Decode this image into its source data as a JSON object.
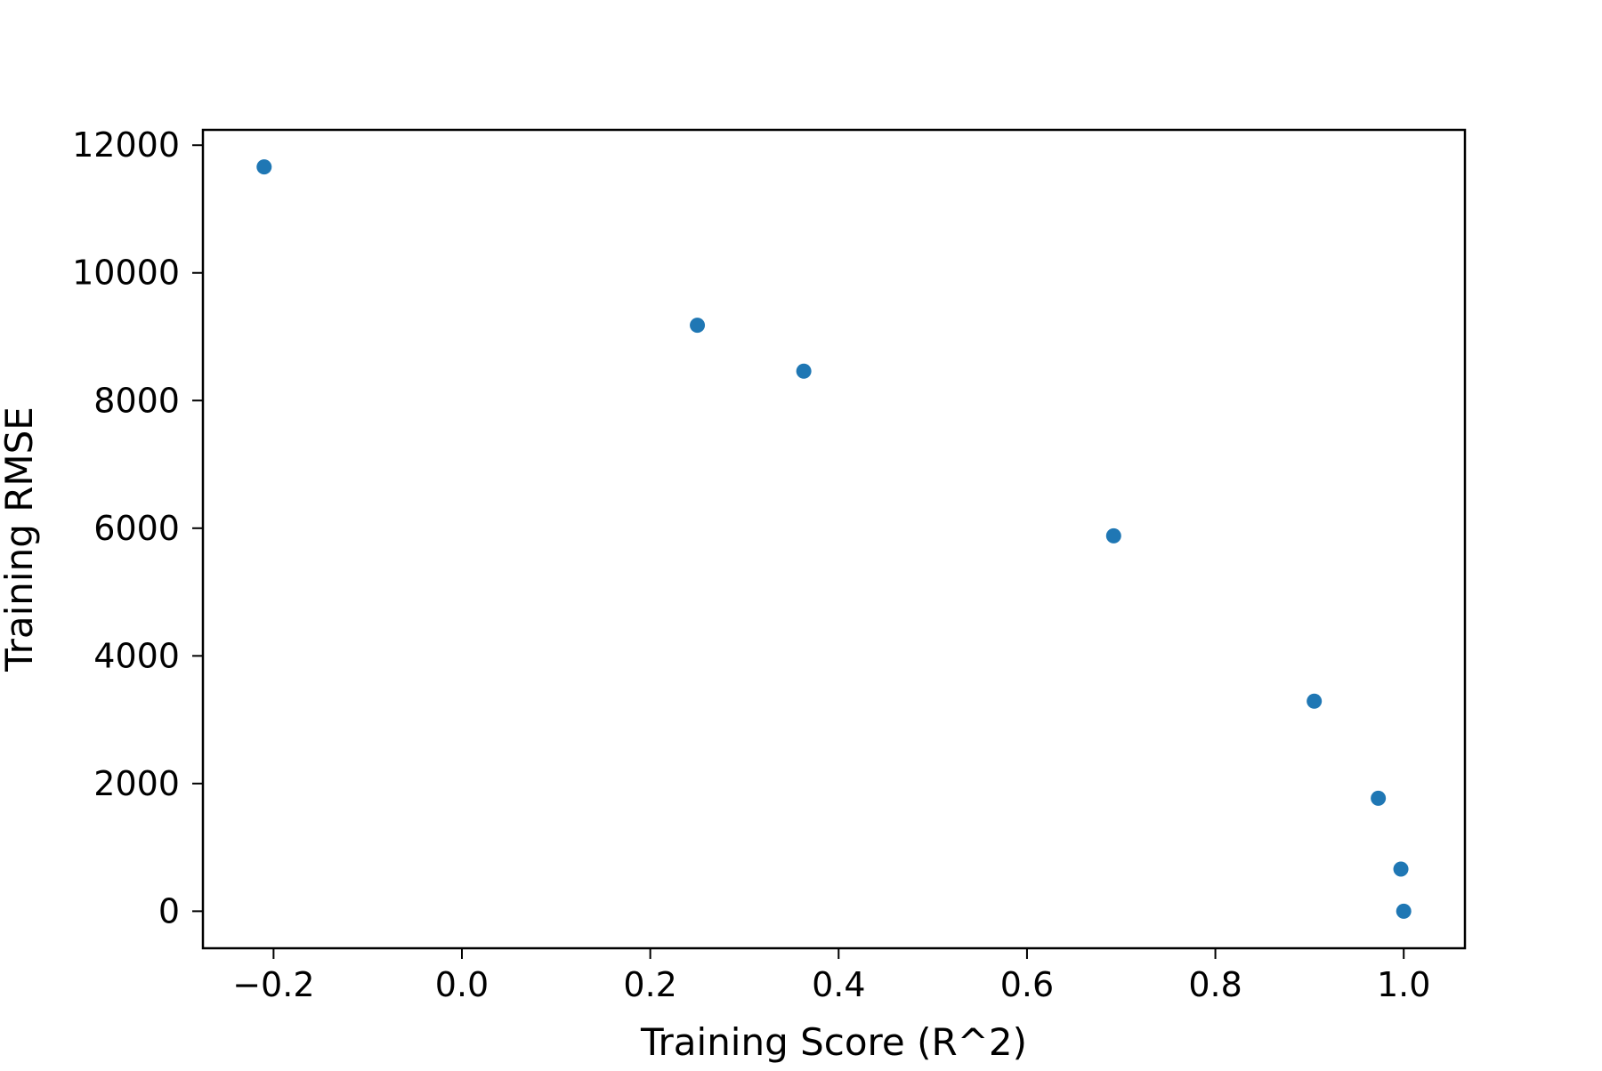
{
  "chart_data": {
    "type": "scatter",
    "title": "",
    "xlabel": "Training Score (R^2)",
    "ylabel": "Training RMSE",
    "xlim": [
      -0.275,
      1.065
    ],
    "ylim": [
      -580,
      12240
    ],
    "xticks": [
      {
        "value": -0.2,
        "label": "−0.2"
      },
      {
        "value": 0.0,
        "label": "0.0"
      },
      {
        "value": 0.2,
        "label": "0.2"
      },
      {
        "value": 0.4,
        "label": "0.4"
      },
      {
        "value": 0.6,
        "label": "0.6"
      },
      {
        "value": 0.8,
        "label": "0.8"
      },
      {
        "value": 1.0,
        "label": "1.0"
      }
    ],
    "yticks": [
      {
        "value": 0,
        "label": "0"
      },
      {
        "value": 2000,
        "label": "2000"
      },
      {
        "value": 4000,
        "label": "4000"
      },
      {
        "value": 6000,
        "label": "6000"
      },
      {
        "value": 8000,
        "label": "8000"
      },
      {
        "value": 10000,
        "label": "10000"
      },
      {
        "value": 12000,
        "label": "12000"
      }
    ],
    "grid": false,
    "legend": "none",
    "series": [
      {
        "color": "#1f77b4",
        "x": [
          -0.21,
          0.25,
          0.363,
          0.692,
          0.905,
          0.973,
          0.997,
          1.0
        ],
        "y": [
          11660,
          9180,
          8460,
          5880,
          3290,
          1770,
          660,
          0
        ]
      }
    ]
  }
}
